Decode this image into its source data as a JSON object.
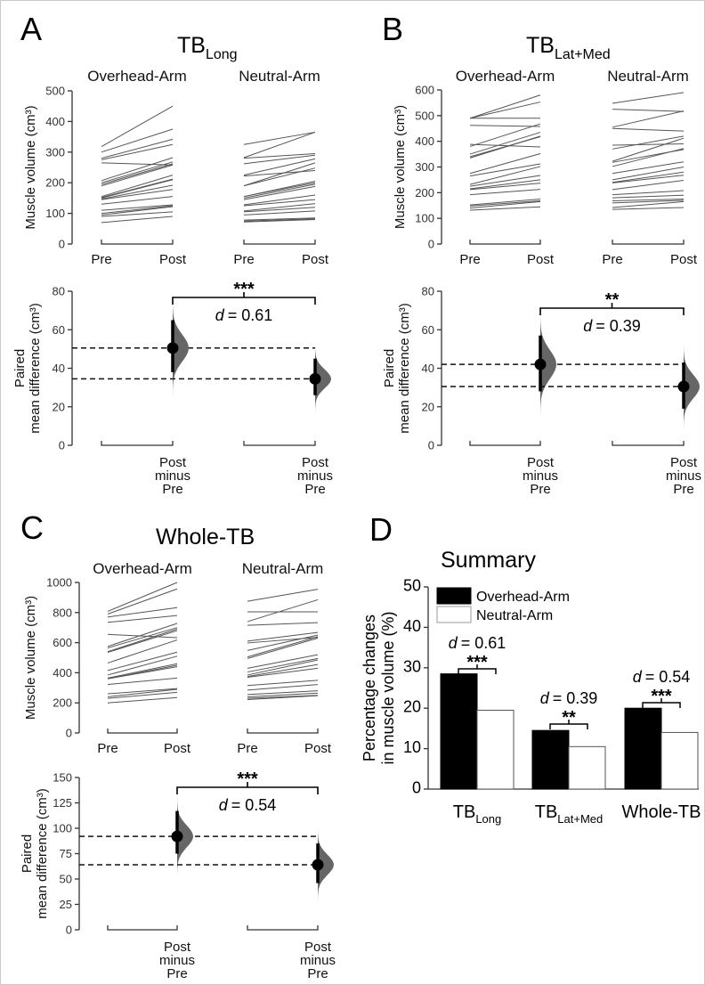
{
  "chart_data": [
    {
      "panel": "A",
      "type": "line",
      "title": "TB",
      "title_sub": "Long",
      "ylabel": "Muscle volume (cm³)",
      "ylim": [
        0,
        500
      ],
      "yticks": [
        0,
        100,
        200,
        300,
        400,
        500
      ],
      "xticks": [
        "Pre",
        "Post"
      ],
      "groups": [
        {
          "name": "Overhead-Arm",
          "pre": [
            318,
            300,
            280,
            275,
            265,
            207,
            200,
            195,
            190,
            155,
            152,
            150,
            147,
            145,
            130,
            110,
            100,
            95,
            90,
            70
          ],
          "post": [
            450,
            375,
            342,
            325,
            258,
            282,
            268,
            262,
            258,
            225,
            212,
            210,
            192,
            178,
            155,
            128,
            125,
            122,
            105,
            90
          ]
        },
        {
          "name": "Neutral-Arm",
          "pre": [
            325,
            282,
            280,
            262,
            225,
            222,
            190,
            190,
            155,
            155,
            150,
            145,
            128,
            125,
            108,
            105,
            95,
            78,
            75,
            72
          ],
          "post": [
            365,
            365,
            295,
            290,
            278,
            240,
            265,
            248,
            205,
            200,
            195,
            188,
            160,
            145,
            132,
            120,
            108,
            85,
            82,
            80
          ]
        }
      ]
    },
    {
      "panel": "A",
      "type": "estimation",
      "ylabel": [
        "Paired",
        "mean difference (cm³)"
      ],
      "ylim": [
        0,
        80
      ],
      "yticks": [
        0,
        20,
        40,
        60,
        80
      ],
      "xlabel": [
        "Post",
        "minus",
        "Pre"
      ],
      "effects": [
        {
          "group": "Overhead-Arm",
          "mean": 50.5,
          "ci": [
            38,
            65
          ]
        },
        {
          "group": "Neutral-Arm",
          "mean": 34.5,
          "ci": [
            26,
            45
          ]
        }
      ],
      "significance": "***",
      "cohens_d_label": "d",
      "cohens_d": "= 0.61"
    },
    {
      "panel": "B",
      "type": "line",
      "title": "TB",
      "title_sub": "Lat+Med",
      "ylabel": "Muscle volume (cm³)",
      "ylim": [
        0,
        600
      ],
      "yticks": [
        0,
        100,
        200,
        300,
        400,
        500,
        600
      ],
      "xticks": [
        "Pre",
        "Post"
      ],
      "groups": [
        {
          "name": "Overhead-Arm",
          "pre": [
            490,
            490,
            490,
            462,
            388,
            380,
            350,
            340,
            335,
            275,
            265,
            232,
            225,
            215,
            212,
            192,
            152,
            148,
            140,
            132
          ],
          "post": [
            580,
            553,
            490,
            458,
            378,
            468,
            435,
            418,
            420,
            352,
            312,
            302,
            267,
            250,
            237,
            213,
            175,
            168,
            165,
            145
          ]
        },
        {
          "name": "Neutral-Arm",
          "pre": [
            548,
            525,
            455,
            450,
            385,
            370,
            322,
            318,
            302,
            275,
            250,
            240,
            238,
            212,
            192,
            180,
            168,
            160,
            142,
            135
          ],
          "post": [
            590,
            516,
            518,
            440,
            390,
            420,
            412,
            368,
            372,
            320,
            300,
            280,
            268,
            248,
            208,
            190,
            175,
            170,
            165,
            142
          ]
        }
      ]
    },
    {
      "panel": "B",
      "type": "estimation",
      "ylabel": [
        "Paired",
        "mean difference (cm³)"
      ],
      "ylim": [
        0,
        80
      ],
      "yticks": [
        0,
        20,
        40,
        60,
        80
      ],
      "xlabel": [
        "Post",
        "minus",
        "Pre"
      ],
      "effects": [
        {
          "group": "Overhead-Arm",
          "mean": 42,
          "ci": [
            28,
            57
          ]
        },
        {
          "group": "Neutral-Arm",
          "mean": 30.5,
          "ci": [
            19,
            43
          ]
        }
      ],
      "significance": "**",
      "cohens_d_label": "d",
      "cohens_d": "= 0.39"
    },
    {
      "panel": "C",
      "type": "line",
      "title": "Whole-TB",
      "title_sub": "",
      "ylabel": "Muscle volume (cm³)",
      "ylim": [
        0,
        1000
      ],
      "yticks": [
        0,
        200,
        400,
        600,
        800,
        1000
      ],
      "xticks": [
        "Pre",
        "Post"
      ],
      "groups": [
        {
          "name": "Overhead-Arm",
          "pre": [
            808,
            790,
            770,
            735,
            655,
            575,
            565,
            540,
            535,
            465,
            415,
            385,
            365,
            360,
            360,
            322,
            260,
            240,
            230,
            200
          ],
          "post": [
            1000,
            957,
            833,
            780,
            633,
            728,
            700,
            690,
            680,
            618,
            537,
            510,
            460,
            450,
            440,
            365,
            295,
            290,
            270,
            235
          ]
        },
        {
          "name": "Neutral-Arm",
          "pre": [
            875,
            805,
            740,
            715,
            610,
            598,
            548,
            505,
            495,
            430,
            405,
            385,
            375,
            370,
            315,
            285,
            255,
            240,
            230,
            222
          ],
          "post": [
            955,
            805,
            885,
            733,
            668,
            635,
            650,
            640,
            630,
            520,
            495,
            485,
            455,
            430,
            350,
            322,
            280,
            265,
            250,
            248
          ]
        }
      ]
    },
    {
      "panel": "C",
      "type": "estimation",
      "ylabel": [
        "Paired",
        "mean difference (cm³)"
      ],
      "ylim": [
        0,
        150
      ],
      "yticks": [
        0,
        25,
        50,
        75,
        100,
        125,
        150
      ],
      "xlabel": [
        "Post",
        "minus",
        "Pre"
      ],
      "effects": [
        {
          "group": "Overhead-Arm",
          "mean": 92,
          "ci": [
            75,
            117
          ]
        },
        {
          "group": "Neutral-Arm",
          "mean": 64,
          "ci": [
            46,
            85
          ]
        }
      ],
      "significance": "***",
      "cohens_d_label": "d",
      "cohens_d": "= 0.54"
    },
    {
      "panel": "D",
      "type": "bar",
      "title": "Summary",
      "ylabel": [
        "Percentage changes",
        "in muscle volume (%)"
      ],
      "ylim": [
        0,
        50
      ],
      "yticks": [
        0,
        10,
        20,
        30,
        40,
        50
      ],
      "categories": [
        {
          "main": "TB",
          "sub": "Long"
        },
        {
          "main": "TB",
          "sub": "Lat+Med"
        },
        {
          "main": "Whole-TB",
          "sub": ""
        }
      ],
      "series": [
        {
          "name": "Overhead-Arm",
          "color": "#000000",
          "values": [
            28.5,
            14.5,
            20
          ]
        },
        {
          "name": "Neutral-Arm",
          "color": "#ffffff",
          "values": [
            19.5,
            10.5,
            14
          ]
        }
      ],
      "significance": [
        "***",
        "**",
        "***"
      ],
      "cohens_d_label": "d",
      "cohens_d": [
        "= 0.61",
        "= 0.39",
        "= 0.54"
      ],
      "legend": "top-left"
    }
  ]
}
